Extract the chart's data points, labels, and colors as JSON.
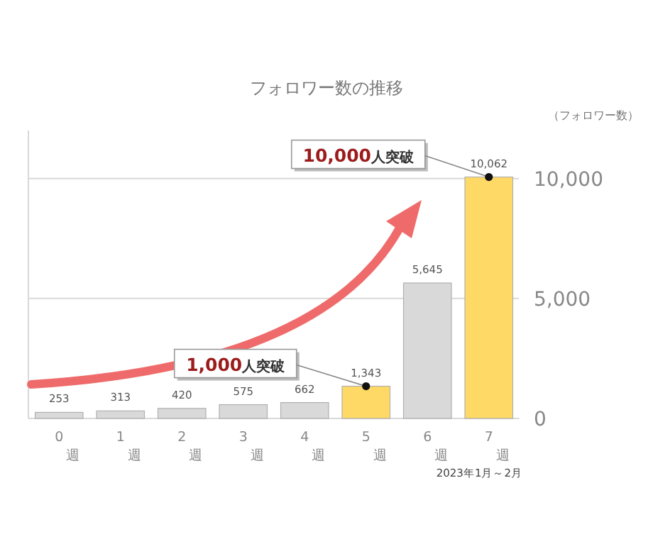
{
  "chart_data": {
    "type": "bar",
    "title": "フォロワー数の推移",
    "ylabel": "（フォロワー数）",
    "categories": [
      "0\n週",
      "1\n週",
      "2\n週",
      "3\n週",
      "4\n週",
      "5\n週",
      "6\n週",
      "7\n週"
    ],
    "values": [
      253,
      313,
      420,
      575,
      662,
      1343,
      5645,
      10062
    ],
    "colors": [
      "#d9d9d9",
      "#d9d9d9",
      "#d9d9d9",
      "#d9d9d9",
      "#d9d9d9",
      "#ffd966",
      "#d9d9d9",
      "#ffd966"
    ],
    "ylim": [
      0,
      12000
    ],
    "yticks": [
      {
        "value": 0,
        "label": "0"
      },
      {
        "value": 5000,
        "label": "5,000"
      },
      {
        "value": 10000,
        "label": "10,000"
      }
    ],
    "value_labels": [
      "253",
      "313",
      "420",
      "575",
      "662",
      "1,343",
      "5,645",
      "10,062"
    ],
    "grid": "y",
    "annotations": [
      {
        "text": "1,000人突破",
        "x": "5\n週",
        "y": 1343
      },
      {
        "text": "10,000人突破",
        "x": "7\n週",
        "y": 10062
      },
      "2023年1月～2月"
    ]
  }
}
